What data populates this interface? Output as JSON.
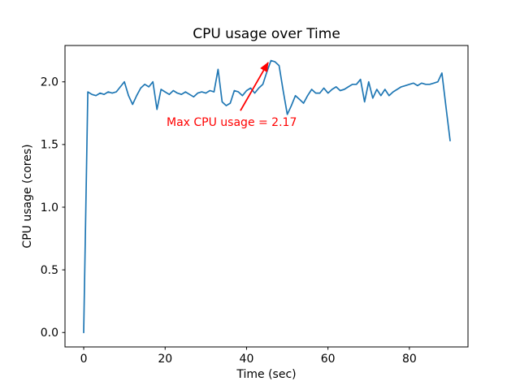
{
  "figure": {
    "background": "#ffffff",
    "text_color": "#000000"
  },
  "chart_data": {
    "type": "line",
    "title": "CPU usage over Time",
    "xlabel": "Time (sec)",
    "ylabel": "CPU usage (cores)",
    "grid": false,
    "legend": null,
    "xlim": [
      -4.6,
      94.4
    ],
    "ylim": [
      -0.115,
      2.29
    ],
    "xticks": [
      0,
      20,
      40,
      60,
      80
    ],
    "xtick_labels": [
      "0",
      "20",
      "40",
      "60",
      "80"
    ],
    "yticks": [
      0.0,
      0.5,
      1.0,
      1.5,
      2.0
    ],
    "ytick_labels": [
      "0.0",
      "0.5",
      "1.0",
      "1.5",
      "2.0"
    ],
    "x": [
      0,
      1,
      2,
      3,
      4,
      5,
      6,
      7,
      8,
      9,
      10,
      11,
      12,
      13,
      14,
      15,
      16,
      17,
      18,
      19,
      20,
      21,
      22,
      23,
      24,
      25,
      26,
      27,
      28,
      29,
      30,
      31,
      32,
      33,
      34,
      35,
      36,
      37,
      38,
      39,
      40,
      41,
      42,
      43,
      44,
      45,
      46,
      47,
      48,
      49,
      50,
      51,
      52,
      53,
      54,
      55,
      56,
      57,
      58,
      59,
      60,
      61,
      62,
      63,
      64,
      65,
      66,
      67,
      68,
      69,
      70,
      71,
      72,
      73,
      74,
      75,
      76,
      77,
      78,
      79,
      80,
      81,
      82,
      83,
      84,
      85,
      86,
      87,
      88,
      89,
      90
    ],
    "series": [
      {
        "name": "CPU usage",
        "color": "#1f77b4",
        "values": [
          0.0,
          1.92,
          1.9,
          1.89,
          1.91,
          1.9,
          1.92,
          1.91,
          1.92,
          1.96,
          2.0,
          1.89,
          1.82,
          1.89,
          1.95,
          1.98,
          1.96,
          2.0,
          1.78,
          1.94,
          1.92,
          1.9,
          1.93,
          1.91,
          1.9,
          1.92,
          1.9,
          1.88,
          1.91,
          1.92,
          1.91,
          1.93,
          1.92,
          2.1,
          1.84,
          1.81,
          1.83,
          1.93,
          1.92,
          1.89,
          1.93,
          1.95,
          1.91,
          1.95,
          1.98,
          2.08,
          2.17,
          2.16,
          2.13,
          1.93,
          1.74,
          1.81,
          1.89,
          1.86,
          1.83,
          1.89,
          1.94,
          1.91,
          1.91,
          1.95,
          1.91,
          1.94,
          1.96,
          1.93,
          1.94,
          1.96,
          1.98,
          1.98,
          2.02,
          1.84,
          2.0,
          1.87,
          1.94,
          1.89,
          1.94,
          1.89,
          1.92,
          1.94,
          1.96,
          1.97,
          1.98,
          1.99,
          1.97,
          1.99,
          1.98,
          1.98,
          1.99,
          2.0,
          2.07,
          1.8,
          1.53
        ]
      }
    ],
    "annotation": {
      "text": "Max CPU usage = 2.17",
      "color": "#ff0000",
      "max_value": "2.17",
      "xy": [
        46,
        2.17
      ],
      "xytext": [
        20.35,
        1.648
      ],
      "arrow_from": [
        38.5,
        1.77
      ],
      "arrow_to": [
        45.3,
        2.154
      ]
    }
  }
}
